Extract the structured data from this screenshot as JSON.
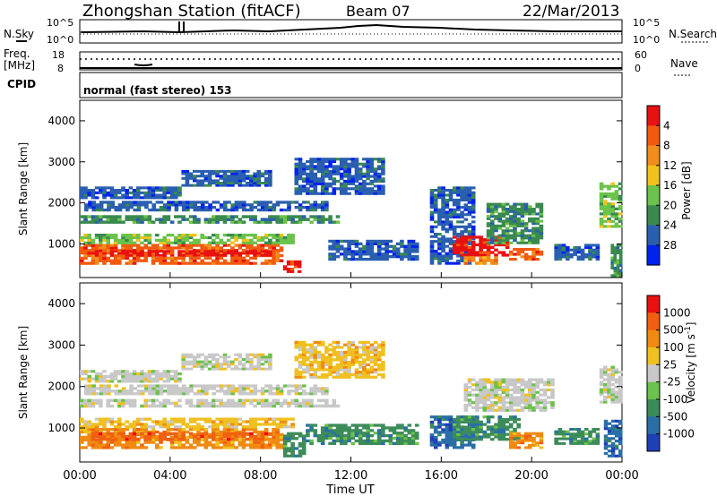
{
  "header": {
    "title": "Zhongshan Station (fitACF)",
    "beam": "Beam 07",
    "date": "22/Mar/2013"
  },
  "top_panel": {
    "nsky_label": "N.Sky",
    "nsky_top_tick": "10^5",
    "nsky_bottom_tick": "10^0",
    "nsearch_label": "N.Search",
    "nsearch_top_tick": "10^5",
    "nsearch_bottom_tick": "10^0",
    "freq_label_1": "Freq.",
    "freq_label_2": "[MHz]",
    "freq_top_tick": "18",
    "freq_bottom_tick": "8",
    "nave_label": "Nave",
    "nave_top_tick": "60",
    "nave_bottom_tick": "0",
    "cpid_label": "CPID",
    "cpid_text": "normal (fast stereo) 153"
  },
  "chart_data": [
    {
      "type": "heatmap",
      "name": "power",
      "ylabel": "Slant Range [km]",
      "ylim": [
        180,
        4500
      ],
      "yticks": [
        "1000",
        "2000",
        "3000",
        "4000"
      ],
      "xlim": [
        "00:00",
        "24:00"
      ],
      "colorbar_label": "Power [dB]",
      "colorbar_ticks": [
        "4",
        "8",
        "12",
        "16",
        "20",
        "24",
        "28"
      ],
      "colors": [
        "#0022ee",
        "#2a5fb0",
        "#3a8a50",
        "#6cc24a",
        "#f3c21a",
        "#f28c1a",
        "#f25a10",
        "#e81010"
      ],
      "bands": [
        {
          "start": 0.0,
          "end": 9.0,
          "r1": 500,
          "r2": 1000,
          "level": 6
        },
        {
          "start": 0.5,
          "end": 8.5,
          "r1": 700,
          "r2": 850,
          "level": 7
        },
        {
          "start": 0.0,
          "end": 9.5,
          "r1": 1000,
          "r2": 1250,
          "level": 3
        },
        {
          "start": 0.0,
          "end": 11.5,
          "r1": 1500,
          "r2": 1700,
          "level": 2
        },
        {
          "start": 0.2,
          "end": 11.0,
          "r1": 1800,
          "r2": 2050,
          "level": 1
        },
        {
          "start": 0.0,
          "end": 4.5,
          "r1": 2100,
          "r2": 2400,
          "level": 1
        },
        {
          "start": 4.5,
          "end": 8.5,
          "r1": 2400,
          "r2": 2800,
          "level": 1
        },
        {
          "start": 9.5,
          "end": 13.5,
          "r1": 2200,
          "r2": 3100,
          "level": 1
        },
        {
          "start": 9.0,
          "end": 9.8,
          "r1": 300,
          "r2": 600,
          "level": 7
        },
        {
          "start": 11.0,
          "end": 15.0,
          "r1": 600,
          "r2": 1100,
          "level": 1
        },
        {
          "start": 15.5,
          "end": 17.5,
          "r1": 500,
          "r2": 2400,
          "level": 1
        },
        {
          "start": 16.5,
          "end": 19.0,
          "r1": 700,
          "r2": 1200,
          "level": 7
        },
        {
          "start": 17.0,
          "end": 18.5,
          "r1": 500,
          "r2": 700,
          "level": 5
        },
        {
          "start": 18.0,
          "end": 20.5,
          "r1": 1000,
          "r2": 2000,
          "level": 2
        },
        {
          "start": 19.0,
          "end": 20.5,
          "r1": 600,
          "r2": 900,
          "level": 6
        },
        {
          "start": 21.0,
          "end": 23.0,
          "r1": 600,
          "r2": 1000,
          "level": 1
        },
        {
          "start": 23.0,
          "end": 24.0,
          "r1": 1400,
          "r2": 2500,
          "level": 3
        },
        {
          "start": 23.5,
          "end": 24.0,
          "r1": 200,
          "r2": 1000,
          "level": 2
        }
      ]
    },
    {
      "type": "heatmap",
      "name": "velocity",
      "ylabel": "Slant Range [km]",
      "ylim": [
        180,
        4500
      ],
      "yticks": [
        "1000",
        "2000",
        "3000",
        "4000"
      ],
      "xlim": [
        "00:00",
        "24:00"
      ],
      "xticks": [
        "00:00",
        "04:00",
        "08:00",
        "12:00",
        "16:00",
        "20:00",
        "00:00"
      ],
      "xlabel": "Time UT",
      "colorbar_label": "Velocity [m s^-1]",
      "colorbar_ticks": [
        "1000",
        "500",
        "100",
        "25",
        "-25",
        "-100",
        "-500",
        "-1000"
      ],
      "colors": [
        "#1f3fb5",
        "#2a6ea8",
        "#3c8c5a",
        "#6cc24a",
        "#c8c8c8",
        "#f0c020",
        "#f08a10",
        "#f06010",
        "#e81010"
      ],
      "bands": [
        {
          "start": 0.0,
          "end": 9.0,
          "r1": 500,
          "r2": 1000,
          "level": 6
        },
        {
          "start": 0.5,
          "end": 8.5,
          "r1": 700,
          "r2": 900,
          "level": 7
        },
        {
          "start": 0.0,
          "end": 9.5,
          "r1": 1000,
          "r2": 1250,
          "level": 5
        },
        {
          "start": 0.0,
          "end": 11.5,
          "r1": 1500,
          "r2": 1700,
          "level": 4
        },
        {
          "start": 0.2,
          "end": 11.0,
          "r1": 1800,
          "r2": 2050,
          "level": 4
        },
        {
          "start": 0.0,
          "end": 4.5,
          "r1": 2100,
          "r2": 2400,
          "level": 4
        },
        {
          "start": 4.5,
          "end": 8.5,
          "r1": 2400,
          "r2": 2800,
          "level": 4
        },
        {
          "start": 9.5,
          "end": 13.5,
          "r1": 2200,
          "r2": 3100,
          "level": 5
        },
        {
          "start": 9.0,
          "end": 10.0,
          "r1": 300,
          "r2": 900,
          "level": 2
        },
        {
          "start": 10.0,
          "end": 15.0,
          "r1": 600,
          "r2": 1100,
          "level": 2
        },
        {
          "start": 15.5,
          "end": 17.5,
          "r1": 500,
          "r2": 1300,
          "level": 1
        },
        {
          "start": 16.5,
          "end": 19.5,
          "r1": 700,
          "r2": 1300,
          "level": 2
        },
        {
          "start": 17.0,
          "end": 21.0,
          "r1": 1400,
          "r2": 2200,
          "level": 4
        },
        {
          "start": 19.0,
          "end": 20.5,
          "r1": 500,
          "r2": 900,
          "level": 6
        },
        {
          "start": 21.0,
          "end": 23.0,
          "r1": 600,
          "r2": 1000,
          "level": 2
        },
        {
          "start": 23.0,
          "end": 24.0,
          "r1": 1600,
          "r2": 2500,
          "level": 4
        },
        {
          "start": 23.2,
          "end": 24.0,
          "r1": 300,
          "r2": 1200,
          "level": 1
        }
      ]
    }
  ]
}
